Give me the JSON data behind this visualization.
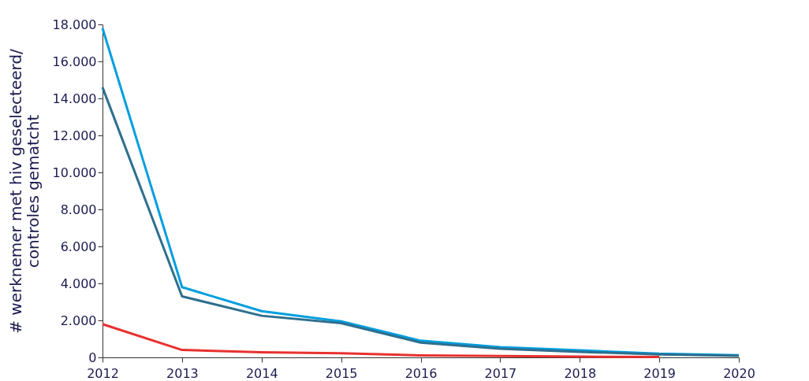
{
  "chart_data": {
    "type": "line",
    "ylabel": "# werknemer met hiv geselecteerd/\ncontroles gematcht",
    "categories": [
      "2012",
      "2013",
      "2014",
      "2015",
      "2016",
      "2017",
      "2018",
      "2019",
      "2020"
    ],
    "series": [
      {
        "color": "#009fdf",
        "values": [
          17800,
          3800,
          2500,
          1950,
          900,
          550,
          380,
          200,
          120
        ]
      },
      {
        "color": "#2e6f8e",
        "values": [
          14600,
          3300,
          2250,
          1850,
          800,
          470,
          300,
          160,
          90
        ]
      },
      {
        "color": "#e8312f",
        "values": [
          1800,
          400,
          280,
          220,
          110,
          70,
          40,
          20,
          null
        ]
      }
    ],
    "ylim": [
      0,
      18000
    ],
    "yticks": [
      {
        "value": 0,
        "label": "0"
      },
      {
        "value": 2000,
        "label": "2.000"
      },
      {
        "value": 4000,
        "label": "4.000"
      },
      {
        "value": 6000,
        "label": "6.000"
      },
      {
        "value": 8000,
        "label": "8.000"
      },
      {
        "value": 10000,
        "label": "10.000"
      },
      {
        "value": 12000,
        "label": "12.000"
      },
      {
        "value": 14000,
        "label": "14.000"
      },
      {
        "value": 16000,
        "label": "16.000"
      },
      {
        "value": 18000,
        "label": "18.000"
      }
    ],
    "grid": false,
    "legend": false,
    "marker": "none",
    "line_style": "solid"
  }
}
